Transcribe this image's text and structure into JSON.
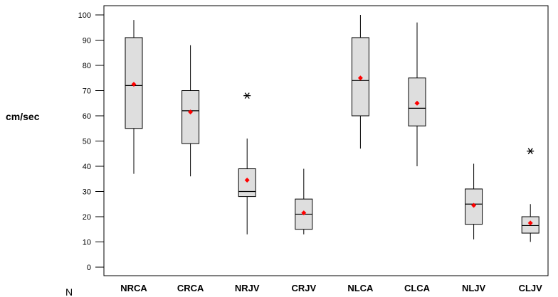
{
  "chart_data": {
    "type": "boxplot",
    "ylabel": "cm/sec",
    "row_label": "N",
    "ylim": [
      0,
      100
    ],
    "yticks": [
      {
        "value": 0,
        "label": "0"
      },
      {
        "value": 10,
        "label": "10"
      },
      {
        "value": 20,
        "label": "20"
      },
      {
        "value": 30,
        "label": "30"
      },
      {
        "value": 40,
        "label": "40"
      },
      {
        "value": 50,
        "label": "50"
      },
      {
        "value": 60,
        "label": "60"
      },
      {
        "value": 70,
        "label": "70"
      },
      {
        "value": 80,
        "label": "80"
      },
      {
        "value": 90,
        "label": "90"
      },
      {
        "value": 100,
        "label": "100"
      }
    ],
    "categories": [
      "NRCA",
      "CRCA",
      "NRJV",
      "CRJV",
      "NLCA",
      "CLCA",
      "NLJV",
      "CLJV"
    ],
    "boxes": [
      {
        "category": "NRCA",
        "whisker_low": 37,
        "q1": 55,
        "median": 72,
        "q3": 91,
        "whisker_high": 98,
        "mean": 72.5,
        "outliers": []
      },
      {
        "category": "CRCA",
        "whisker_low": 36,
        "q1": 49,
        "median": 62,
        "q3": 70,
        "whisker_high": 88,
        "mean": 61.5,
        "outliers": []
      },
      {
        "category": "NRJV",
        "whisker_low": 13,
        "q1": 28,
        "median": 30,
        "q3": 39,
        "whisker_high": 51,
        "mean": 34.5,
        "outliers": [
          68
        ]
      },
      {
        "category": "CRJV",
        "whisker_low": 13,
        "q1": 15,
        "median": 21,
        "q3": 27,
        "whisker_high": 39,
        "mean": 21.5,
        "outliers": []
      },
      {
        "category": "NLCA",
        "whisker_low": 47,
        "q1": 60,
        "median": 74,
        "q3": 91,
        "whisker_high": 100,
        "mean": 75,
        "outliers": []
      },
      {
        "category": "CLCA",
        "whisker_low": 40,
        "q1": 56,
        "median": 63,
        "q3": 75,
        "whisker_high": 97,
        "mean": 65,
        "outliers": []
      },
      {
        "category": "NLJV",
        "whisker_low": 11,
        "q1": 17,
        "median": 25,
        "q3": 31,
        "whisker_high": 41,
        "mean": 24.5,
        "outliers": []
      },
      {
        "category": "CLJV",
        "whisker_low": 10,
        "q1": 13.5,
        "median": 16.5,
        "q3": 20,
        "whisker_high": 25,
        "mean": 17.5,
        "outliers": [
          46
        ]
      }
    ],
    "colors": {
      "box_fill": "#dedede",
      "mean_marker": "#ff0000",
      "line": "#000000",
      "outlier": "#000000"
    },
    "grid": false,
    "legend": "none"
  }
}
